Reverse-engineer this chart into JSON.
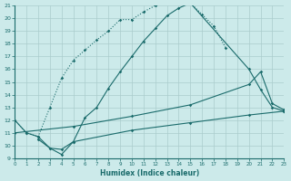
{
  "xlabel": "Humidex (Indice chaleur)",
  "bg_color": "#cceaea",
  "grid_color": "#aacccc",
  "line_color": "#1a6b6b",
  "xlim": [
    0,
    23
  ],
  "ylim": [
    9,
    21
  ],
  "curve_dotted_x": [
    0,
    1,
    2,
    3,
    4,
    5,
    6,
    7,
    8,
    9,
    10,
    11,
    12,
    13,
    14,
    15,
    16,
    17,
    18
  ],
  "curve_dotted_y": [
    12.0,
    11.0,
    10.7,
    13.0,
    15.3,
    16.7,
    17.5,
    18.3,
    19.0,
    19.9,
    19.9,
    20.5,
    21.0,
    21.3,
    21.3,
    21.2,
    20.3,
    19.4,
    17.7
  ],
  "curve_solid_x": [
    0,
    1,
    2,
    3,
    4,
    5,
    6,
    7,
    8,
    9,
    10,
    11,
    12,
    13,
    14,
    15,
    20,
    21,
    22,
    23
  ],
  "curve_solid_y": [
    12.0,
    11.0,
    10.7,
    9.8,
    9.7,
    10.3,
    12.2,
    13.0,
    14.5,
    15.8,
    17.0,
    18.2,
    19.2,
    20.2,
    20.8,
    21.2,
    16.0,
    14.4,
    13.0,
    12.7
  ],
  "curve_mid_x": [
    0,
    5,
    10,
    15,
    20,
    21,
    22,
    23
  ],
  "curve_mid_y": [
    11.0,
    11.5,
    12.3,
    13.2,
    14.8,
    15.8,
    13.3,
    12.8
  ],
  "curve_low_x": [
    2,
    3,
    4,
    5,
    10,
    15,
    20,
    23
  ],
  "curve_low_y": [
    10.5,
    9.8,
    9.3,
    10.3,
    11.2,
    11.8,
    12.4,
    12.7
  ]
}
